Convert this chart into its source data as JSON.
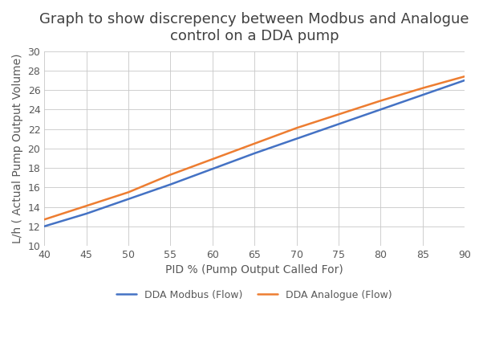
{
  "title": "Graph to show discrepency between Modbus and Analogue\ncontrol on a DDA pump",
  "xlabel": "PID % (Pump Output Called For)",
  "ylabel": "L/h ( Actual Pump Output Volume)",
  "xlim": [
    40,
    90
  ],
  "ylim": [
    10,
    30
  ],
  "xticks": [
    40,
    45,
    50,
    55,
    60,
    65,
    70,
    75,
    80,
    85,
    90
  ],
  "yticks": [
    10,
    12,
    14,
    16,
    18,
    20,
    22,
    24,
    26,
    28,
    30
  ],
  "modbus_x": [
    40,
    45,
    50,
    55,
    60,
    65,
    70,
    75,
    80,
    85,
    90
  ],
  "modbus_y": [
    12.0,
    13.3,
    14.8,
    16.3,
    17.9,
    19.5,
    21.0,
    22.5,
    24.0,
    25.5,
    27.0
  ],
  "analogue_x": [
    40,
    45,
    50,
    55,
    60,
    65,
    70,
    75,
    80,
    85,
    90
  ],
  "analogue_y": [
    12.7,
    14.1,
    15.5,
    17.3,
    18.9,
    20.5,
    22.1,
    23.5,
    24.9,
    26.2,
    27.4
  ],
  "modbus_color": "#4472C4",
  "analogue_color": "#ED7D31",
  "modbus_label": "DDA Modbus (Flow)",
  "analogue_label": "DDA Analogue (Flow)",
  "line_width": 1.8,
  "title_fontsize": 13,
  "axis_label_fontsize": 10,
  "tick_fontsize": 9,
  "legend_fontsize": 9,
  "title_color": "#404040",
  "label_color": "#595959",
  "tick_color": "#595959",
  "background_color": "#ffffff",
  "grid_color": "#c8c8c8",
  "grid_alpha": 1.0,
  "grid_linewidth": 0.6
}
